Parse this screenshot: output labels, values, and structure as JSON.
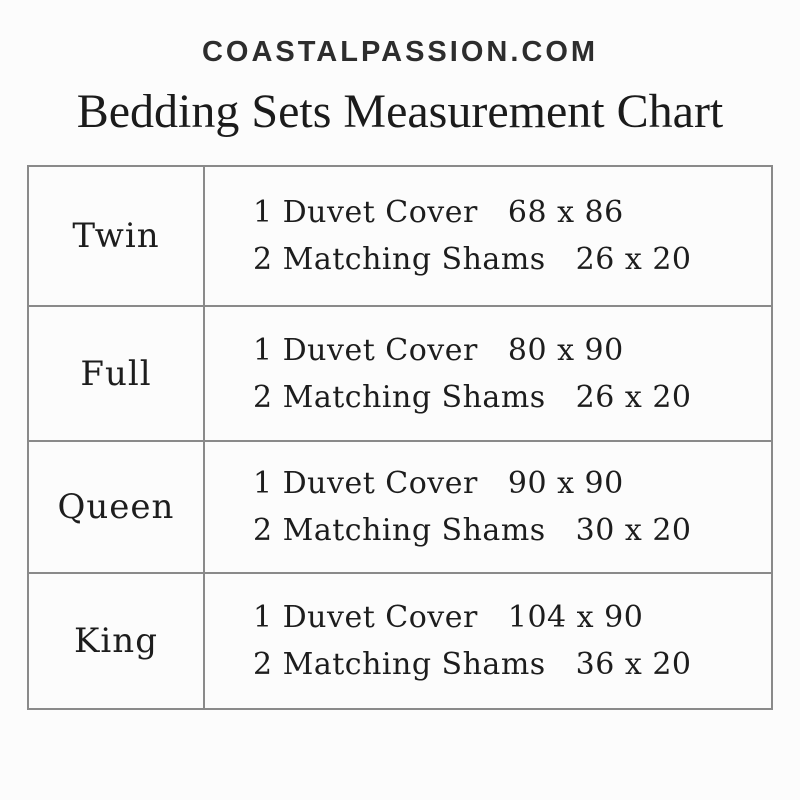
{
  "site": {
    "name": "COASTALPASSION.COM"
  },
  "title": "Bedding Sets Measurement Chart",
  "table": {
    "rows": [
      {
        "size": "Twin",
        "items": [
          {
            "label": "1 Duvet Cover",
            "dimensions": "68 x 86"
          },
          {
            "label": "2 Matching Shams",
            "dimensions": "26 x 20"
          }
        ]
      },
      {
        "size": "Full",
        "items": [
          {
            "label": "1 Duvet Cover",
            "dimensions": "80 x 90"
          },
          {
            "label": "2 Matching Shams",
            "dimensions": "26 x 20"
          }
        ]
      },
      {
        "size": "Queen",
        "items": [
          {
            "label": "1 Duvet Cover",
            "dimensions": "90 x 90"
          },
          {
            "label": "2 Matching Shams",
            "dimensions": "30 x 20"
          }
        ]
      },
      {
        "size": "King",
        "items": [
          {
            "label": "1 Duvet Cover",
            "dimensions": "104 x 90"
          },
          {
            "label": "2 Matching Shams",
            "dimensions": "36 x 20"
          }
        ]
      }
    ]
  },
  "chart_data": {
    "type": "table",
    "title": "Bedding Sets Measurement Chart",
    "source_text": "COASTALPASSION.COM",
    "rows": [
      {
        "size": "Twin",
        "duvet_cover_qty": 1,
        "duvet_cover_in": "68 x 86",
        "matching_shams_qty": 2,
        "matching_shams_in": "26 x 20"
      },
      {
        "size": "Full",
        "duvet_cover_qty": 1,
        "duvet_cover_in": "80 x 90",
        "matching_shams_qty": 2,
        "matching_shams_in": "26 x 20"
      },
      {
        "size": "Queen",
        "duvet_cover_qty": 1,
        "duvet_cover_in": "90 x 90",
        "matching_shams_qty": 2,
        "matching_shams_in": "30 x 20"
      },
      {
        "size": "King",
        "duvet_cover_qty": 1,
        "duvet_cover_in": "104 x 90",
        "matching_shams_qty": 2,
        "matching_shams_in": "36 x 20"
      }
    ]
  },
  "colors": {
    "text": "#1d1d1d",
    "header_text": "#2d2d2d",
    "border": "#8a8a8a",
    "background": "#fcfcfc"
  }
}
